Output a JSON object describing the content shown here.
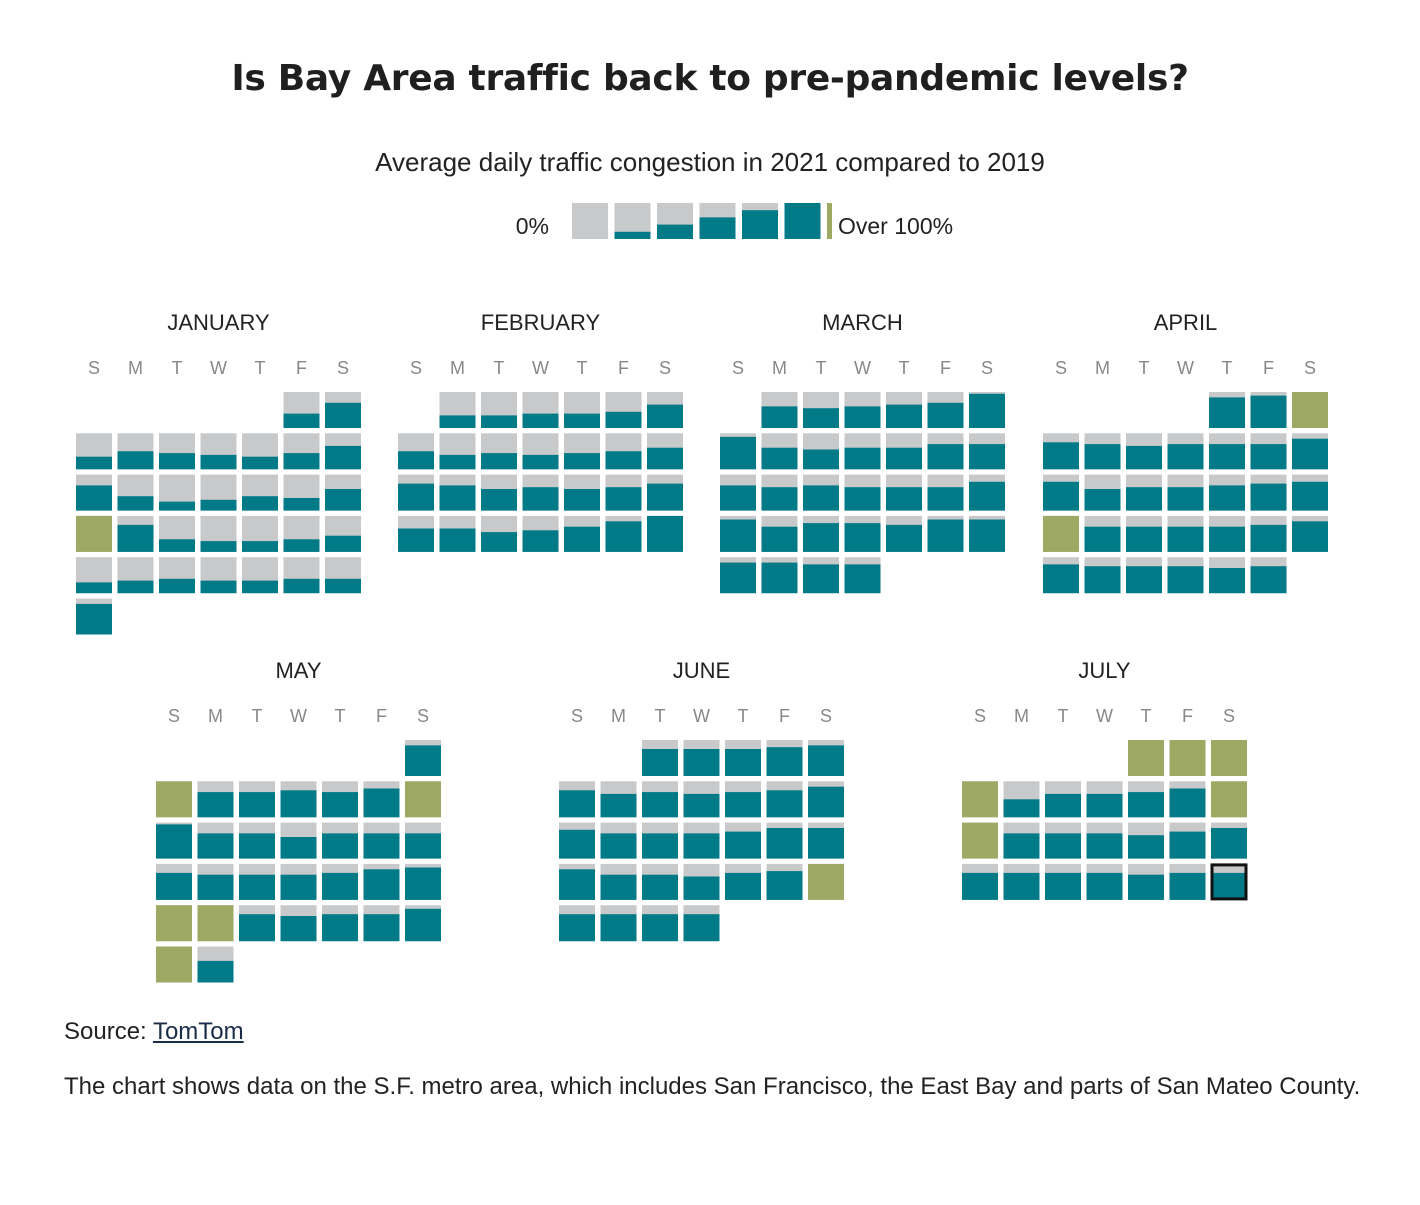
{
  "chart_data": {
    "type": "heatmap",
    "title": "Is Bay Area traffic back to pre-pandemic levels?",
    "subtitle": "Average daily traffic congestion in 2021 compared to 2019",
    "legend": {
      "min_label": "0%",
      "max_label": "Over 100%",
      "steps": [
        0,
        20,
        40,
        60,
        80,
        100
      ]
    },
    "day_labels": [
      "S",
      "M",
      "T",
      "W",
      "T",
      "F",
      "S"
    ],
    "unit": "percent of 2019 congestion",
    "months": [
      {
        "name": "JANUARY",
        "start_weekday": 5,
        "values": [
          40,
          70,
          35,
          50,
          45,
          40,
          35,
          45,
          65,
          70,
          40,
          25,
          30,
          40,
          35,
          60,
          101,
          75,
          35,
          30,
          30,
          35,
          45,
          30,
          35,
          40,
          35,
          35,
          40,
          40,
          85
        ]
      },
      {
        "name": "FEBRUARY",
        "values": [
          35,
          35,
          40,
          40,
          45,
          65,
          50,
          40,
          45,
          40,
          45,
          50,
          60,
          75,
          70,
          60,
          65,
          60,
          65,
          75,
          65,
          65,
          55,
          60,
          70,
          85,
          100
        ],
        "start_weekday": 1
      },
      {
        "name": "MARCH",
        "start_weekday": 1,
        "values": [
          60,
          55,
          60,
          65,
          70,
          95,
          90,
          60,
          55,
          60,
          60,
          70,
          70,
          70,
          65,
          70,
          65,
          65,
          65,
          80,
          90,
          70,
          80,
          80,
          75,
          90,
          90,
          85,
          85,
          80,
          80
        ]
      },
      {
        "name": "APRIL",
        "start_weekday": 4,
        "values": [
          85,
          90,
          101,
          75,
          70,
          65,
          70,
          70,
          70,
          85,
          80,
          60,
          65,
          65,
          70,
          75,
          80,
          101,
          70,
          70,
          70,
          70,
          75,
          85,
          80,
          75,
          75,
          75,
          70,
          75
        ]
      },
      {
        "name": "MAY",
        "start_weekday": 6,
        "values": [
          85,
          101,
          70,
          70,
          75,
          70,
          80,
          101,
          95,
          70,
          70,
          60,
          70,
          70,
          70,
          75,
          70,
          70,
          70,
          75,
          85,
          90,
          101,
          101,
          75,
          70,
          75,
          75,
          90,
          101,
          60
        ]
      },
      {
        "name": "JUNE",
        "start_weekday": 2,
        "values": [
          75,
          75,
          75,
          80,
          85,
          75,
          65,
          70,
          65,
          70,
          75,
          85,
          80,
          70,
          70,
          70,
          75,
          85,
          85,
          85,
          70,
          70,
          65,
          75,
          80,
          101,
          75,
          75,
          75,
          75
        ]
      },
      {
        "name": "JULY",
        "start_weekday": 4,
        "values": [
          101,
          101,
          101,
          101,
          50,
          65,
          65,
          70,
          80,
          101,
          101,
          70,
          70,
          70,
          65,
          75,
          85,
          75,
          75,
          75,
          75,
          70,
          75,
          75
        ]
      }
    ]
  },
  "footer": {
    "source_prefix": "Source: ",
    "source_link": "TomTom",
    "note": "The chart shows data on the S.F. metro area, which includes San Francisco, the East Bay and parts of San Mateo County."
  },
  "colors": {
    "empty": "#c8c9cb",
    "fill": "#007a87",
    "over": "#9eaa63",
    "dow_text": "#888888",
    "highlight_border": "#111111"
  },
  "highlight": {
    "month": "JULY",
    "day": 24
  }
}
